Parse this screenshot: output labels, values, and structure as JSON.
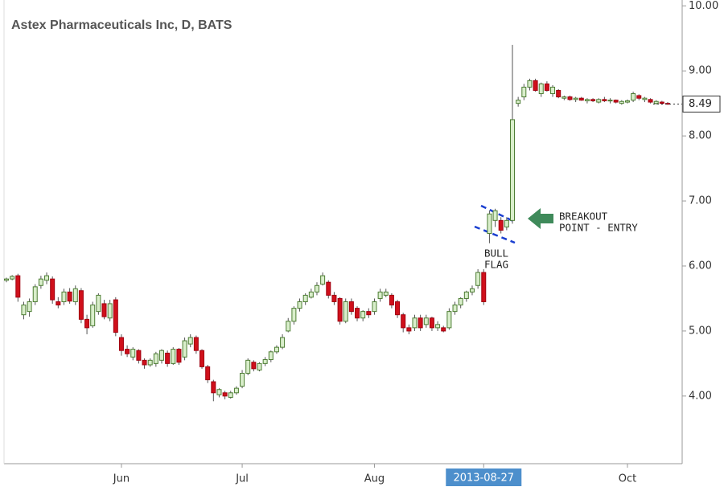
{
  "chart_data": {
    "type": "candlestick",
    "title": "Astex Pharmaceuticals Inc, D, BATS",
    "categories": [
      null,
      null,
      null,
      null,
      null,
      null,
      null,
      null,
      null,
      null,
      null,
      null,
      null,
      null,
      null,
      null,
      null,
      null,
      null,
      null,
      "Jun",
      null,
      null,
      null,
      null,
      null,
      null,
      null,
      null,
      null,
      null,
      null,
      null,
      null,
      null,
      null,
      null,
      null,
      null,
      null,
      null,
      "Jul",
      null,
      null,
      null,
      null,
      null,
      null,
      null,
      null,
      null,
      null,
      null,
      null,
      null,
      null,
      null,
      null,
      null,
      null,
      null,
      null,
      null,
      null,
      "Aug",
      null,
      null,
      null,
      null,
      null,
      null,
      null,
      null,
      null,
      null,
      null,
      null,
      null,
      null,
      null,
      null,
      null,
      null,
      "2013-08-27",
      null,
      null,
      null,
      null,
      null,
      null,
      null,
      null,
      null,
      null,
      null,
      null,
      null,
      null,
      null,
      null,
      null,
      null,
      null,
      null,
      null,
      null,
      null,
      null,
      "Oct",
      null,
      null,
      null,
      null,
      null,
      null,
      null
    ],
    "highlight_category": "2013-08-27",
    "open": [
      5.78,
      5.8,
      5.85,
      5.25,
      5.3,
      5.45,
      5.7,
      5.78,
      5.8,
      5.45,
      5.45,
      5.6,
      5.45,
      5.62,
      5.18,
      5.08,
      5.3,
      5.42,
      5.2,
      5.48,
      4.9,
      4.72,
      4.6,
      4.7,
      4.55,
      4.48,
      4.5,
      4.55,
      4.66,
      4.5,
      4.72,
      4.6,
      4.8,
      4.9,
      4.7,
      4.45,
      4.22,
      4.02,
      4.05,
      3.98,
      4.05,
      4.15,
      4.35,
      4.52,
      4.4,
      4.5,
      4.56,
      4.68,
      4.75,
      5.0,
      5.15,
      5.35,
      5.45,
      5.52,
      5.6,
      5.72,
      5.75,
      5.55,
      5.5,
      5.15,
      5.45,
      5.35,
      5.2,
      5.3,
      5.3,
      5.5,
      5.55,
      5.55,
      5.45,
      5.25,
      5.05,
      5.05,
      5.2,
      5.1,
      5.2,
      5.05,
      5.05,
      5.05,
      5.3,
      5.4,
      5.5,
      5.6,
      5.7,
      5.9,
      6.5,
      6.7,
      6.7,
      6.6,
      6.7,
      8.5,
      8.6,
      8.75,
      8.85,
      8.65,
      8.8,
      8.65,
      8.7,
      8.58,
      8.6,
      8.56,
      8.58,
      8.54,
      8.56,
      8.52,
      8.56,
      8.54,
      8.55,
      8.5,
      8.52,
      8.55,
      8.62,
      8.56,
      8.56,
      8.5,
      8.52,
      8.5
    ],
    "high": [
      5.82,
      5.86,
      5.88,
      5.45,
      5.5,
      5.72,
      5.85,
      5.9,
      5.84,
      5.52,
      5.65,
      5.66,
      5.7,
      5.66,
      5.25,
      5.45,
      5.58,
      5.48,
      5.48,
      5.52,
      4.95,
      4.78,
      4.75,
      4.72,
      4.58,
      4.58,
      4.68,
      4.72,
      4.7,
      4.75,
      4.74,
      4.9,
      4.95,
      4.93,
      4.72,
      4.48,
      4.25,
      4.12,
      4.08,
      4.08,
      4.15,
      4.4,
      4.58,
      4.55,
      4.52,
      4.6,
      4.7,
      4.78,
      4.95,
      5.2,
      5.38,
      5.5,
      5.58,
      5.65,
      5.75,
      5.9,
      5.78,
      5.6,
      5.52,
      5.5,
      5.5,
      5.38,
      5.32,
      5.35,
      5.5,
      5.65,
      5.65,
      5.58,
      5.48,
      5.28,
      5.1,
      5.25,
      5.25,
      5.25,
      5.22,
      5.15,
      5.08,
      5.35,
      5.45,
      5.52,
      5.62,
      5.7,
      5.95,
      5.95,
      6.85,
      6.88,
      6.75,
      6.75,
      9.4,
      8.6,
      8.8,
      8.88,
      8.88,
      8.82,
      8.84,
      8.78,
      8.72,
      8.62,
      8.62,
      8.6,
      8.6,
      8.58,
      8.58,
      8.58,
      8.6,
      8.58,
      8.56,
      8.55,
      8.56,
      8.68,
      8.64,
      8.6,
      8.58,
      8.55,
      8.54,
      8.52
    ],
    "low": [
      5.75,
      5.78,
      5.45,
      5.18,
      5.22,
      5.4,
      5.65,
      5.72,
      5.42,
      5.35,
      5.4,
      5.42,
      5.4,
      5.12,
      4.95,
      5.05,
      5.25,
      5.18,
      5.15,
      4.92,
      4.62,
      4.6,
      4.55,
      4.5,
      4.42,
      4.45,
      4.45,
      4.5,
      4.45,
      4.48,
      4.48,
      4.55,
      4.75,
      4.65,
      4.42,
      4.2,
      3.92,
      3.98,
      3.95,
      3.96,
      4.02,
      4.12,
      4.32,
      4.38,
      4.38,
      4.46,
      4.52,
      4.65,
      4.72,
      4.98,
      5.1,
      5.3,
      5.4,
      5.5,
      5.55,
      5.7,
      5.5,
      5.4,
      5.1,
      5.12,
      5.25,
      5.15,
      5.15,
      5.2,
      5.25,
      5.45,
      5.52,
      5.35,
      5.2,
      4.98,
      4.95,
      5.0,
      5.0,
      5.05,
      5.0,
      5.0,
      4.98,
      5.02,
      5.25,
      5.35,
      5.45,
      5.55,
      5.65,
      5.4,
      6.35,
      6.6,
      6.5,
      6.55,
      6.65,
      8.45,
      8.55,
      8.7,
      8.68,
      8.6,
      8.68,
      8.6,
      8.58,
      8.55,
      8.54,
      8.52,
      8.54,
      8.5,
      8.52,
      8.5,
      8.52,
      8.5,
      8.5,
      8.48,
      8.5,
      8.52,
      8.55,
      8.52,
      8.5,
      8.48,
      8.48,
      8.48
    ],
    "close": [
      5.8,
      5.84,
      5.52,
      5.4,
      5.45,
      5.68,
      5.8,
      5.85,
      5.48,
      5.4,
      5.6,
      5.46,
      5.65,
      5.18,
      5.05,
      5.4,
      5.55,
      5.22,
      5.42,
      4.98,
      4.7,
      4.65,
      4.72,
      4.55,
      4.48,
      4.55,
      4.65,
      4.7,
      4.5,
      4.72,
      4.52,
      4.85,
      4.9,
      4.7,
      4.45,
      4.25,
      4.05,
      4.1,
      4.0,
      4.05,
      4.12,
      4.35,
      4.55,
      4.42,
      4.5,
      4.56,
      4.68,
      4.75,
      4.9,
      5.15,
      5.35,
      5.45,
      5.55,
      5.6,
      5.7,
      5.85,
      5.55,
      5.45,
      5.15,
      5.45,
      5.3,
      5.2,
      5.3,
      5.25,
      5.45,
      5.6,
      5.6,
      5.4,
      5.25,
      5.05,
      5.0,
      5.2,
      5.05,
      5.2,
      5.05,
      5.1,
      5.0,
      5.3,
      5.4,
      5.5,
      5.6,
      5.65,
      5.9,
      5.45,
      6.8,
      6.85,
      6.55,
      6.7,
      8.25,
      8.55,
      8.75,
      8.85,
      8.7,
      8.8,
      8.7,
      8.75,
      8.6,
      8.6,
      8.56,
      8.58,
      8.55,
      8.56,
      8.54,
      8.56,
      8.54,
      8.55,
      8.52,
      8.53,
      8.54,
      8.65,
      8.58,
      8.58,
      8.52,
      8.53,
      8.5,
      8.49
    ],
    "up_color": "#d9eecb",
    "up_border": "#4d7d33",
    "down_color": "#d0101b",
    "down_border": "#a00010",
    "wick_color": "#555555",
    "ylim": [
      2.96,
      10.09
    ],
    "yticks": [
      {
        "value": 4,
        "label": "4.00"
      },
      {
        "value": 5,
        "label": "5.00"
      },
      {
        "value": 6,
        "label": "6.00"
      },
      {
        "value": 7,
        "label": "7.00"
      },
      {
        "value": 8,
        "label": "8.00"
      },
      {
        "value": 9,
        "label": "9.00"
      },
      {
        "value": 10,
        "label": "10.00"
      }
    ],
    "last_price": 8.49,
    "annotations": [
      {
        "lines": [
          "BULL",
          "FLAG"
        ]
      },
      {
        "lines": [
          "BREAKOUT",
          "POINT - ENTRY"
        ]
      }
    ]
  }
}
